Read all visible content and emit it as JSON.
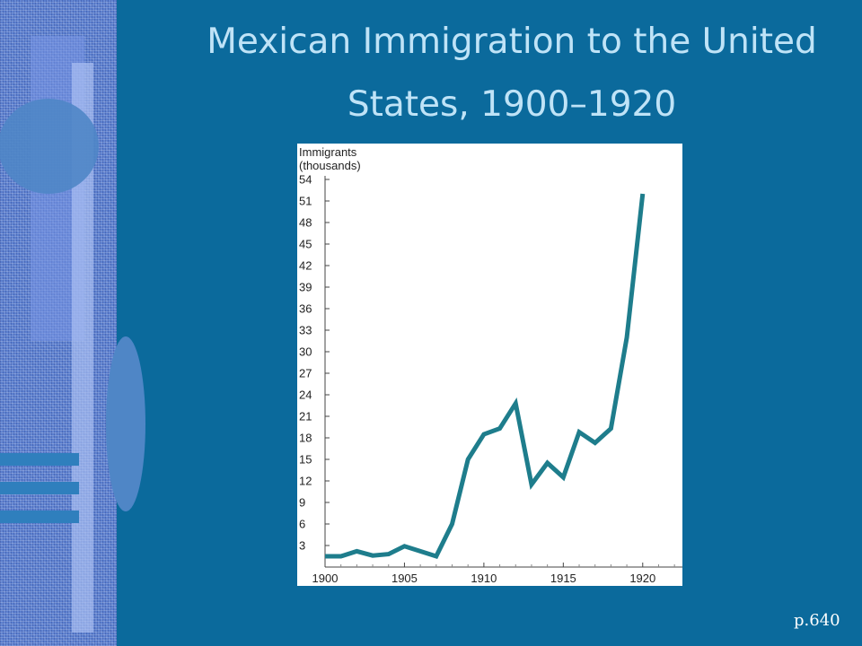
{
  "slide": {
    "title": "Mexican Immigration to the United States, 1900–1920",
    "page_ref": "p.640"
  },
  "chart_data": {
    "type": "line",
    "ylabel": "Immigrants\n(thousands)",
    "xlabel": "",
    "xlim": [
      1900,
      1922.5
    ],
    "ylim": [
      0,
      56
    ],
    "x_ticks": [
      1900,
      1905,
      1910,
      1915,
      1920
    ],
    "y_ticks": [
      3,
      6,
      9,
      12,
      15,
      18,
      21,
      24,
      27,
      30,
      33,
      36,
      39,
      42,
      45,
      48,
      51,
      54
    ],
    "grid": false,
    "series": [
      {
        "color": "#1e7d8c",
        "x": [
          1900,
          1901,
          1902,
          1903,
          1904,
          1905,
          1906,
          1907,
          1908,
          1909,
          1910,
          1911,
          1912,
          1913,
          1914,
          1915,
          1916,
          1917,
          1918,
          1919,
          1920
        ],
        "y": [
          1.5,
          1.5,
          2.2,
          1.6,
          1.8,
          2.9,
          2.2,
          1.5,
          6.0,
          15.0,
          18.5,
          19.3,
          22.8,
          11.5,
          14.5,
          12.5,
          18.8,
          17.3,
          19.3,
          32.0,
          52.0
        ]
      }
    ]
  }
}
